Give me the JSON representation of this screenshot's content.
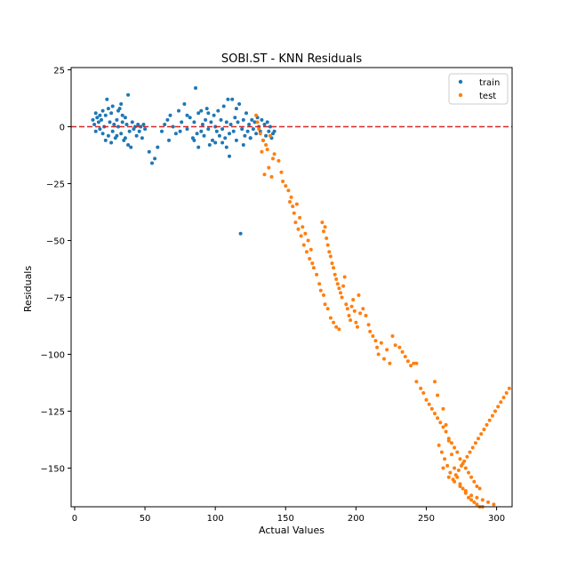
{
  "chart_data": {
    "type": "scatter",
    "title": "SOBI.ST - KNN Residuals",
    "xlabel": "Actual Values",
    "ylabel": "Residuals",
    "xlim": [
      -2.5,
      311
    ],
    "ylim": [
      -167,
      26
    ],
    "xticks": [
      0,
      50,
      100,
      150,
      200,
      250,
      300
    ],
    "yticks": [
      25,
      0,
      -25,
      -50,
      -75,
      -100,
      -125,
      -150
    ],
    "xtick_labels": [
      "0",
      "50",
      "100",
      "150",
      "200",
      "250",
      "300"
    ],
    "ytick_labels": [
      "25",
      "0",
      "−25",
      "−50",
      "−75",
      "−100",
      "−125",
      "−150"
    ],
    "reference_line": {
      "y": 0,
      "color": "#d62728",
      "style": "dashed"
    },
    "legend": {
      "position": "top-right"
    },
    "series": [
      {
        "name": "train",
        "color": "#1f77b4",
        "points": [
          [
            13,
            3
          ],
          [
            14,
            1
          ],
          [
            15,
            -2
          ],
          [
            16,
            4
          ],
          [
            17,
            2
          ],
          [
            18,
            -1
          ],
          [
            19,
            3
          ],
          [
            20,
            -3
          ],
          [
            21,
            0
          ],
          [
            22,
            5
          ],
          [
            23,
            12
          ],
          [
            24,
            -4
          ],
          [
            25,
            2
          ],
          [
            26,
            6
          ],
          [
            27,
            -2
          ],
          [
            28,
            1
          ],
          [
            29,
            -5
          ],
          [
            30,
            3
          ],
          [
            31,
            0
          ],
          [
            32,
            8
          ],
          [
            33,
            -3
          ],
          [
            34,
            2
          ],
          [
            35,
            -6
          ],
          [
            36,
            4
          ],
          [
            37,
            1
          ],
          [
            38,
            14
          ],
          [
            39,
            -2
          ],
          [
            40,
            -9
          ],
          [
            41,
            2
          ],
          [
            42,
            -1
          ],
          [
            43,
            0
          ],
          [
            44,
            -4
          ],
          [
            45,
            1
          ],
          [
            46,
            -2
          ],
          [
            47,
            0
          ],
          [
            48,
            -5
          ],
          [
            49,
            1
          ],
          [
            50,
            -1
          ],
          [
            15,
            6
          ],
          [
            18,
            5
          ],
          [
            22,
            -6
          ],
          [
            26,
            -7
          ],
          [
            30,
            -4
          ],
          [
            34,
            5
          ],
          [
            38,
            -8
          ],
          [
            27,
            9
          ],
          [
            31,
            7
          ],
          [
            36,
            -5
          ],
          [
            20,
            7
          ],
          [
            24,
            8
          ],
          [
            33,
            10
          ],
          [
            53,
            -11
          ],
          [
            55,
            -16
          ],
          [
            57,
            -14
          ],
          [
            59,
            -9
          ],
          [
            62,
            -2
          ],
          [
            64,
            1
          ],
          [
            66,
            3
          ],
          [
            67,
            -6
          ],
          [
            68,
            5
          ],
          [
            70,
            0
          ],
          [
            72,
            -3
          ],
          [
            74,
            7
          ],
          [
            75,
            -2
          ],
          [
            76,
            2
          ],
          [
            78,
            10
          ],
          [
            80,
            -1
          ],
          [
            82,
            4
          ],
          [
            84,
            -5
          ],
          [
            85,
            2
          ],
          [
            86,
            17
          ],
          [
            87,
            -3
          ],
          [
            88,
            6
          ],
          [
            90,
            -2
          ],
          [
            91,
            1
          ],
          [
            92,
            -4
          ],
          [
            93,
            3
          ],
          [
            94,
            8
          ],
          [
            95,
            -1
          ],
          [
            96,
            -8
          ],
          [
            97,
            2
          ],
          [
            98,
            -6
          ],
          [
            99,
            5
          ],
          [
            100,
            0
          ],
          [
            101,
            -2
          ],
          [
            102,
            7
          ],
          [
            103,
            -4
          ],
          [
            104,
            3
          ],
          [
            105,
            -1
          ],
          [
            106,
            9
          ],
          [
            107,
            -5
          ],
          [
            108,
            2
          ],
          [
            109,
            12
          ],
          [
            110,
            -3
          ],
          [
            111,
            1
          ],
          [
            112,
            12
          ],
          [
            113,
            -2
          ],
          [
            114,
            4
          ],
          [
            115,
            -6
          ],
          [
            116,
            2
          ],
          [
            117,
            10
          ],
          [
            118,
            -47
          ],
          [
            119,
            -1
          ],
          [
            120,
            3
          ],
          [
            121,
            -4
          ],
          [
            122,
            6
          ],
          [
            123,
            -2
          ],
          [
            124,
            1
          ],
          [
            125,
            -5
          ],
          [
            126,
            3
          ],
          [
            127,
            -1
          ],
          [
            128,
            2
          ],
          [
            129,
            -3
          ],
          [
            130,
            4
          ],
          [
            131,
            0
          ],
          [
            132,
            -2
          ],
          [
            133,
            3
          ],
          [
            134,
            -6
          ],
          [
            135,
            1
          ],
          [
            136,
            -4
          ],
          [
            137,
            2
          ],
          [
            138,
            -2
          ],
          [
            139,
            0
          ],
          [
            140,
            -5
          ],
          [
            141,
            -3
          ],
          [
            142,
            -2
          ],
          [
            80,
            5
          ],
          [
            85,
            -6
          ],
          [
            95,
            6
          ],
          [
            105,
            -7
          ],
          [
            115,
            8
          ],
          [
            125,
            -5
          ],
          [
            110,
            -13
          ],
          [
            100,
            -7
          ],
          [
            90,
            7
          ],
          [
            120,
            -8
          ],
          [
            108,
            -9
          ],
          [
            88,
            -9
          ]
        ]
      },
      {
        "name": "test",
        "color": "#ff7f0e",
        "points": [
          [
            129,
            5
          ],
          [
            130,
            2
          ],
          [
            131,
            -1
          ],
          [
            132,
            -3
          ],
          [
            133,
            -11
          ],
          [
            134,
            -6
          ],
          [
            135,
            -21
          ],
          [
            136,
            -8
          ],
          [
            137,
            -10
          ],
          [
            138,
            -18
          ],
          [
            139,
            -4
          ],
          [
            140,
            -22
          ],
          [
            141,
            -14
          ],
          [
            142,
            -12
          ],
          [
            145,
            -15
          ],
          [
            147,
            -20
          ],
          [
            148,
            -24
          ],
          [
            150,
            -26
          ],
          [
            152,
            -28
          ],
          [
            153,
            -33
          ],
          [
            154,
            -31
          ],
          [
            155,
            -35
          ],
          [
            156,
            -38
          ],
          [
            157,
            -42
          ],
          [
            158,
            -34
          ],
          [
            159,
            -45
          ],
          [
            160,
            -40
          ],
          [
            161,
            -48
          ],
          [
            162,
            -44
          ],
          [
            163,
            -52
          ],
          [
            164,
            -47
          ],
          [
            165,
            -55
          ],
          [
            166,
            -50
          ],
          [
            167,
            -58
          ],
          [
            168,
            -54
          ],
          [
            169,
            -60
          ],
          [
            176,
            -42
          ],
          [
            177,
            -46
          ],
          [
            178,
            -44
          ],
          [
            179,
            -49
          ],
          [
            180,
            -52
          ],
          [
            181,
            -55
          ],
          [
            182,
            -57
          ],
          [
            183,
            -60
          ],
          [
            184,
            -62
          ],
          [
            185,
            -65
          ],
          [
            186,
            -67
          ],
          [
            187,
            -69
          ],
          [
            188,
            -71
          ],
          [
            189,
            -73
          ],
          [
            190,
            -75
          ],
          [
            191,
            -70
          ],
          [
            192,
            -66
          ],
          [
            193,
            -78
          ],
          [
            194,
            -80
          ],
          [
            195,
            -83
          ],
          [
            196,
            -85
          ],
          [
            197,
            -79
          ],
          [
            198,
            -76
          ],
          [
            199,
            -81
          ],
          [
            200,
            -86
          ],
          [
            201,
            -88
          ],
          [
            202,
            -74
          ],
          [
            203,
            -82
          ],
          [
            170,
            -62
          ],
          [
            172,
            -65
          ],
          [
            174,
            -69
          ],
          [
            175,
            -72
          ],
          [
            177,
            -74
          ],
          [
            178,
            -78
          ],
          [
            180,
            -80
          ],
          [
            182,
            -84
          ],
          [
            184,
            -86
          ],
          [
            186,
            -88
          ],
          [
            188,
            -89
          ],
          [
            205,
            -80
          ],
          [
            207,
            -83
          ],
          [
            209,
            -87
          ],
          [
            210,
            -90
          ],
          [
            212,
            -92
          ],
          [
            214,
            -94
          ],
          [
            215,
            -97
          ],
          [
            216,
            -100
          ],
          [
            218,
            -95
          ],
          [
            220,
            -102
          ],
          [
            222,
            -98
          ],
          [
            224,
            -104
          ],
          [
            226,
            -92
          ],
          [
            228,
            -96
          ],
          [
            231,
            -97
          ],
          [
            233,
            -99
          ],
          [
            235,
            -101
          ],
          [
            237,
            -103
          ],
          [
            239,
            -105
          ],
          [
            241,
            -104
          ],
          [
            243,
            -104
          ],
          [
            243,
            -112
          ],
          [
            246,
            -115
          ],
          [
            248,
            -117
          ],
          [
            250,
            -120
          ],
          [
            252,
            -122
          ],
          [
            254,
            -124
          ],
          [
            256,
            -126
          ],
          [
            258,
            -128
          ],
          [
            260,
            -130
          ],
          [
            262,
            -132
          ],
          [
            264,
            -134
          ],
          [
            266,
            -137
          ],
          [
            268,
            -139
          ],
          [
            270,
            -141
          ],
          [
            272,
            -143
          ],
          [
            274,
            -146
          ],
          [
            276,
            -148
          ],
          [
            278,
            -150
          ],
          [
            280,
            -152
          ],
          [
            282,
            -154
          ],
          [
            284,
            -156
          ],
          [
            286,
            -158
          ],
          [
            288,
            -159
          ],
          [
            259,
            -140
          ],
          [
            261,
            -143
          ],
          [
            263,
            -146
          ],
          [
            265,
            -149
          ],
          [
            267,
            -152
          ],
          [
            269,
            -155
          ],
          [
            271,
            -153
          ],
          [
            273,
            -151
          ],
          [
            275,
            -149
          ],
          [
            277,
            -147
          ],
          [
            279,
            -145
          ],
          [
            281,
            -143
          ],
          [
            283,
            -141
          ],
          [
            285,
            -139
          ],
          [
            287,
            -137
          ],
          [
            289,
            -135
          ],
          [
            291,
            -133
          ],
          [
            293,
            -131
          ],
          [
            295,
            -129
          ],
          [
            297,
            -127
          ],
          [
            299,
            -125
          ],
          [
            301,
            -123
          ],
          [
            303,
            -121
          ],
          [
            305,
            -119
          ],
          [
            307,
            -117
          ],
          [
            309,
            -115
          ],
          [
            256,
            -112
          ],
          [
            258,
            -118
          ],
          [
            262,
            -124
          ],
          [
            264,
            -131
          ],
          [
            266,
            -138
          ],
          [
            268,
            -144
          ],
          [
            270,
            -150
          ],
          [
            272,
            -154
          ],
          [
            274,
            -157
          ],
          [
            276,
            -159
          ],
          [
            278,
            -161
          ],
          [
            280,
            -163
          ],
          [
            282,
            -164
          ],
          [
            284,
            -165
          ],
          [
            286,
            -166
          ],
          [
            288,
            -167
          ],
          [
            290,
            -167
          ],
          [
            262,
            -150
          ],
          [
            266,
            -154
          ],
          [
            270,
            -156
          ],
          [
            274,
            -158
          ],
          [
            278,
            -160
          ],
          [
            282,
            -162
          ],
          [
            286,
            -163
          ],
          [
            290,
            -164
          ],
          [
            294,
            -165
          ],
          [
            298,
            -166
          ]
        ]
      }
    ]
  }
}
